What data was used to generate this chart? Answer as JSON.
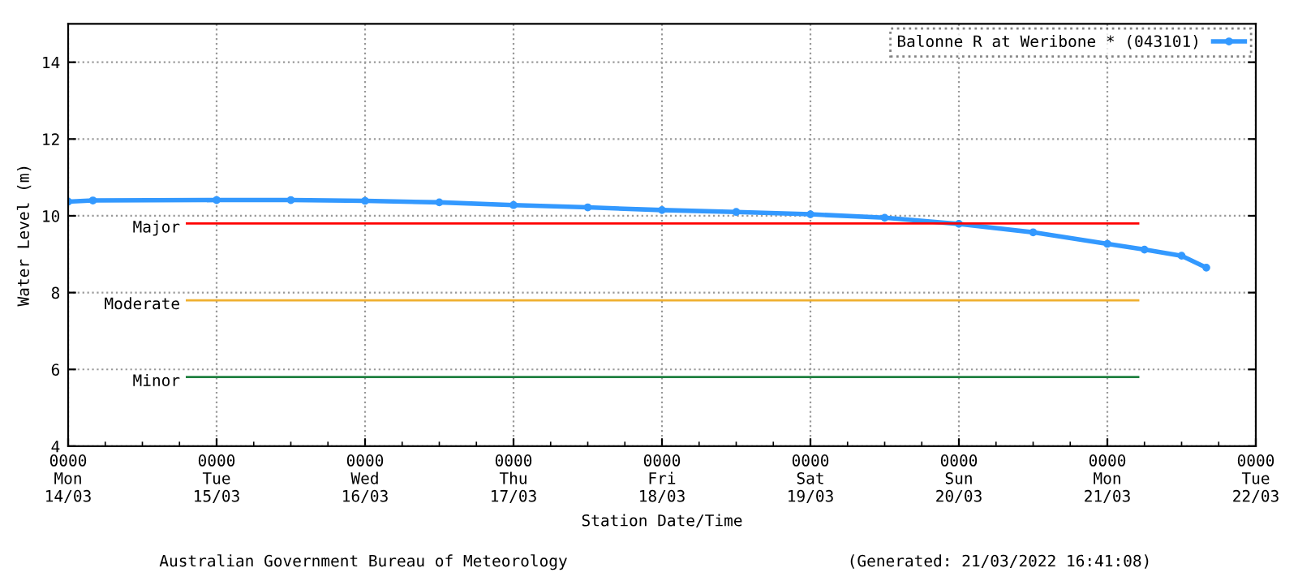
{
  "chart_data": {
    "type": "line",
    "xlabel": "Station Date/Time",
    "ylabel": "Water Level (m)",
    "x": [
      "2022-03-14T00:00",
      "2022-03-14T04:00",
      "2022-03-15T00:00",
      "2022-03-15T12:00",
      "2022-03-16T00:00",
      "2022-03-16T12:00",
      "2022-03-17T00:00",
      "2022-03-17T12:00",
      "2022-03-18T00:00",
      "2022-03-18T12:00",
      "2022-03-19T00:00",
      "2022-03-19T12:00",
      "2022-03-20T00:00",
      "2022-03-20T12:00",
      "2022-03-21T00:00",
      "2022-03-21T06:00",
      "2022-03-21T12:00",
      "2022-03-21T16:00"
    ],
    "series": [
      {
        "name": "Balonne R at Weribone * (043101)",
        "color": "#3399ff",
        "values": [
          10.37,
          10.4,
          10.41,
          10.41,
          10.39,
          10.35,
          10.28,
          10.22,
          10.15,
          10.1,
          10.04,
          9.95,
          9.79,
          9.57,
          9.27,
          9.12,
          8.96,
          8.65
        ]
      }
    ],
    "xlim": [
      "2022-03-14T00:00",
      "2022-03-22T00:00"
    ],
    "xticks": [
      {
        "value": "2022-03-14T00:00",
        "label": "0000\nMon\n14/03"
      },
      {
        "value": "2022-03-15T00:00",
        "label": "0000\nTue\n15/03"
      },
      {
        "value": "2022-03-16T00:00",
        "label": "0000\nWed\n16/03"
      },
      {
        "value": "2022-03-17T00:00",
        "label": "0000\nThu\n17/03"
      },
      {
        "value": "2022-03-18T00:00",
        "label": "0000\nFri\n18/03"
      },
      {
        "value": "2022-03-19T00:00",
        "label": "0000\nSat\n19/03"
      },
      {
        "value": "2022-03-20T00:00",
        "label": "0000\nSun\n20/03"
      },
      {
        "value": "2022-03-21T00:00",
        "label": "0000\nMon\n21/03"
      },
      {
        "value": "2022-03-22T00:00",
        "label": "0000\nTue\n22/03"
      }
    ],
    "ylim": [
      4,
      15
    ],
    "yticks": [
      4,
      6,
      8,
      10,
      12,
      14
    ],
    "ref_lines": [
      {
        "axis": "y",
        "value": 9.8,
        "label": "Major",
        "color": "#ff0000"
      },
      {
        "axis": "y",
        "value": 7.8,
        "label": "Moderate",
        "color": "#f0b030"
      },
      {
        "axis": "y",
        "value": 5.8,
        "label": "Minor",
        "color": "#208040"
      }
    ],
    "annotations": [
      "Australian Government Bureau of Meteorology",
      "(Generated: 21/03/2022 16:41:08)"
    ],
    "grid": true,
    "legend": "top right",
    "marker": "circle",
    "line_style": "solid"
  }
}
